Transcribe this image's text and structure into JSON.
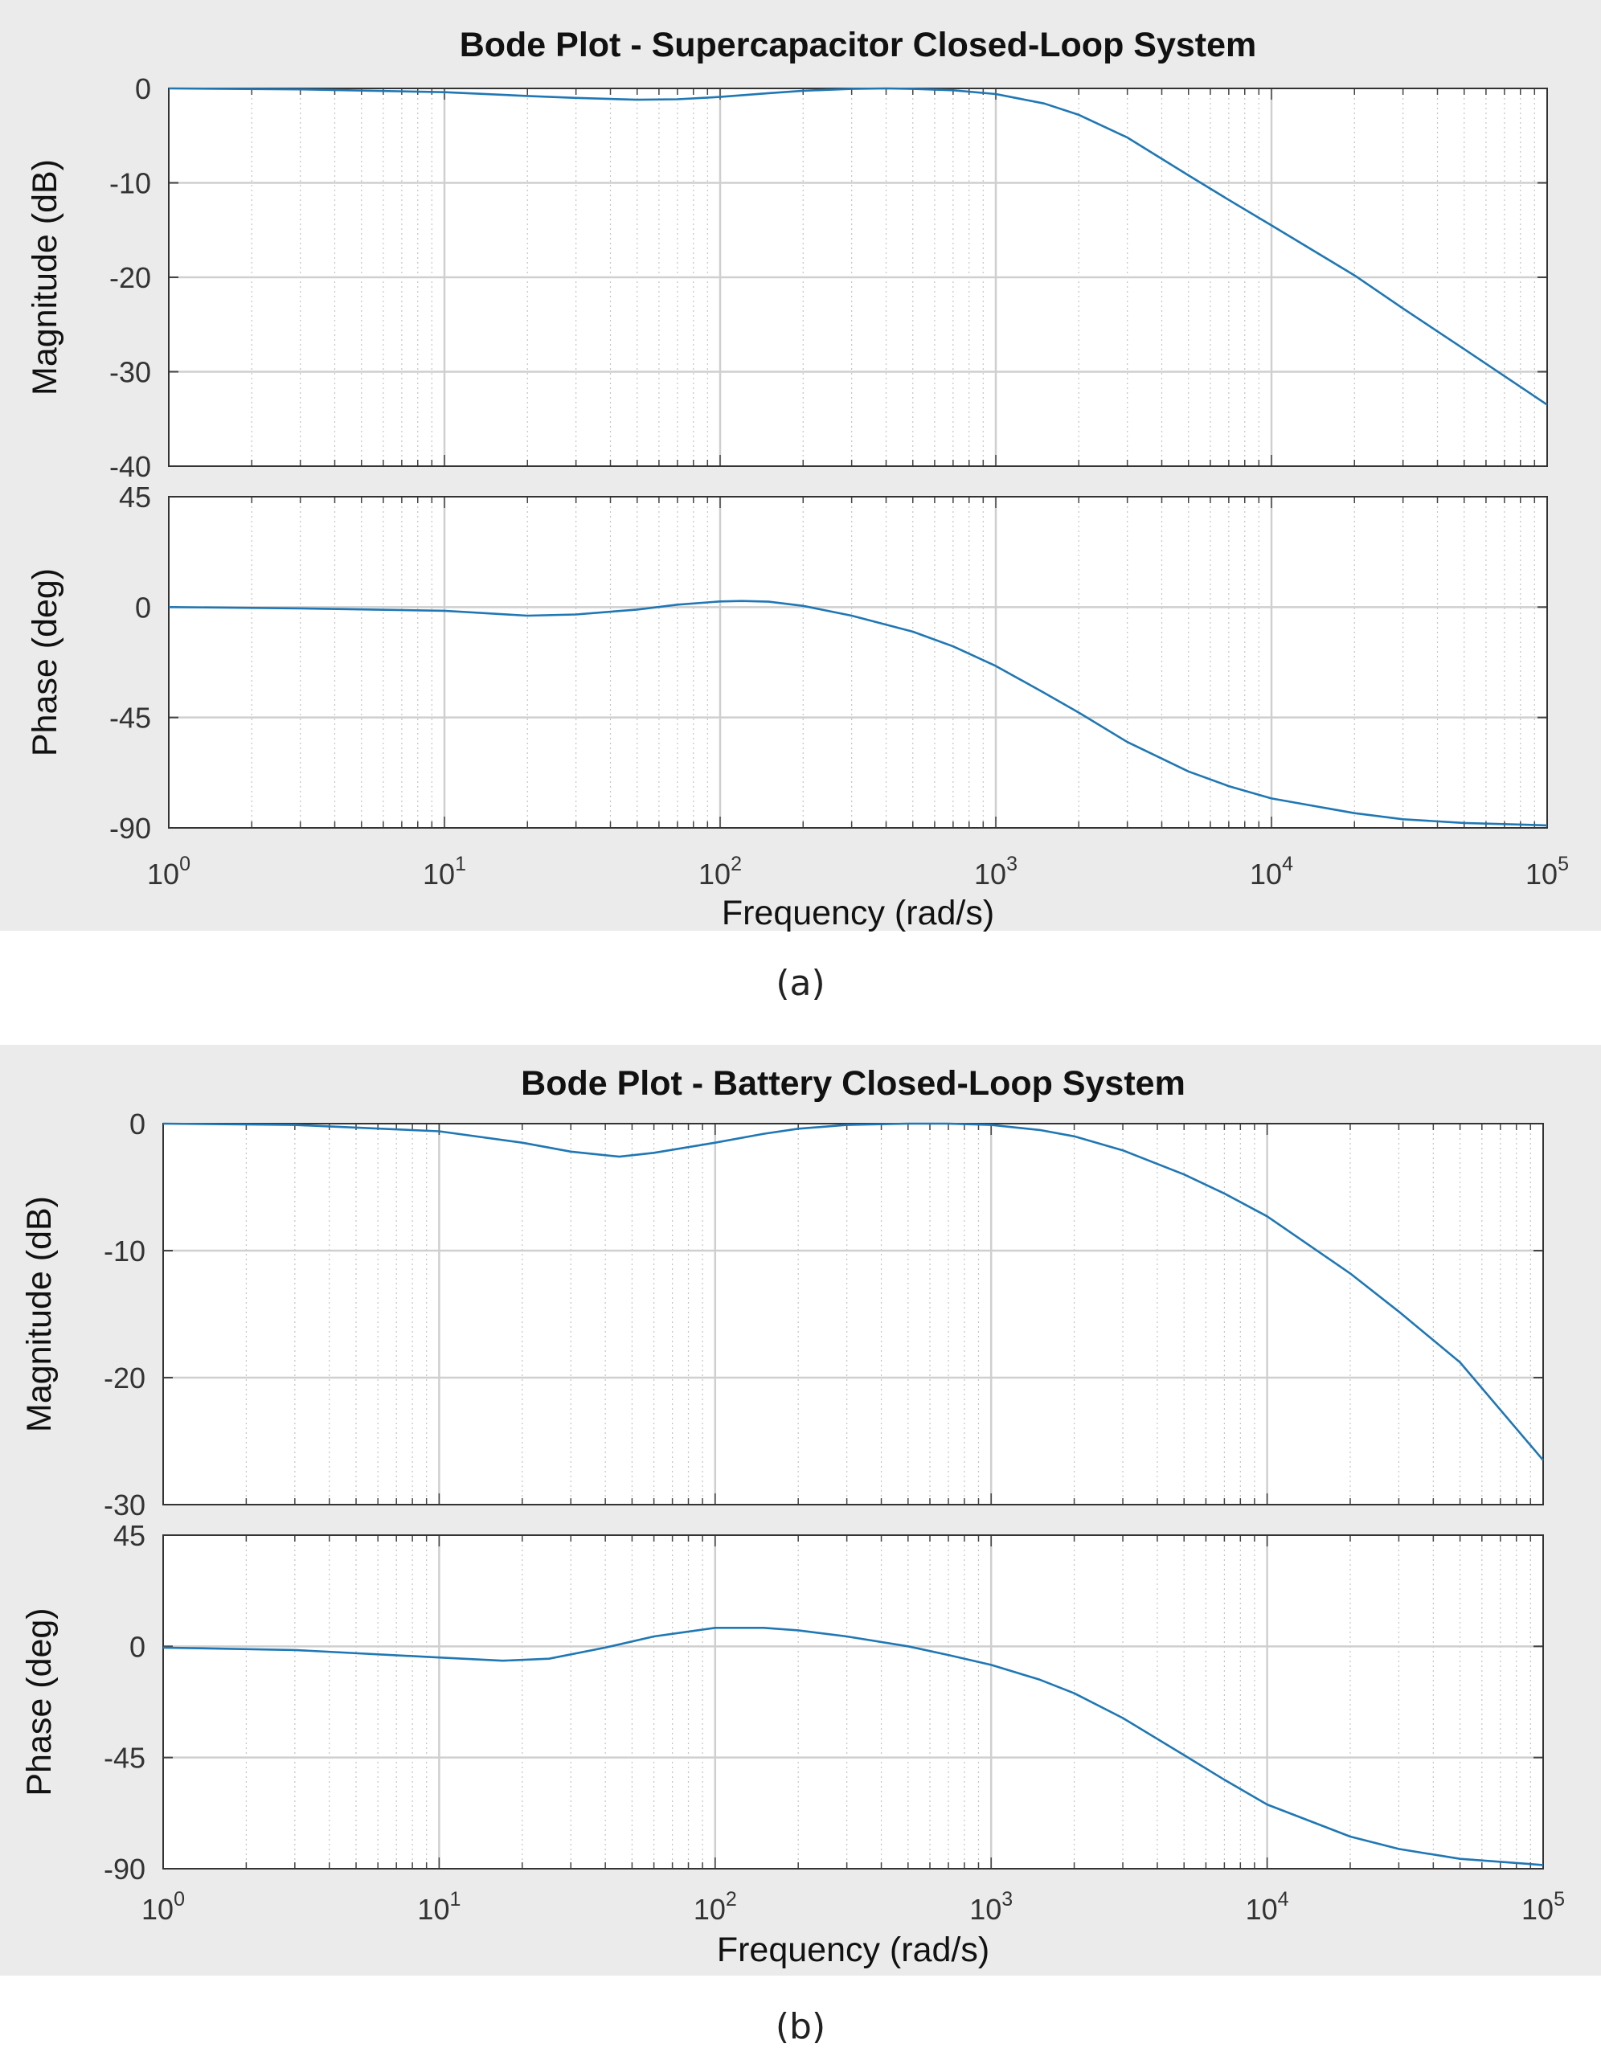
{
  "captions": {
    "a": "(a)",
    "b": "(b)"
  },
  "chart_data": [
    {
      "id": "a",
      "type": "line",
      "title": "Bode Plot - Supercapacitor Closed-Loop System",
      "xlabel": "Frequency  (rad/s)",
      "x_scale": "log",
      "x_range": [
        1,
        100000
      ],
      "x_tick_labels": [
        "10^0",
        "10^1",
        "10^2",
        "10^3",
        "10^4",
        "10^5"
      ],
      "color": "#1f77b4",
      "grid": true,
      "subplots": [
        {
          "name": "magnitude",
          "ylabel": "Magnitude (dB)",
          "ylim": [
            -40,
            0
          ],
          "yticks": [
            0,
            -10,
            -20,
            -30,
            -40
          ],
          "x": [
            1,
            3,
            10,
            20,
            30,
            50,
            70,
            100,
            150,
            200,
            300,
            400,
            500,
            700,
            1000,
            1500,
            2000,
            3000,
            5000,
            7000,
            10000,
            20000,
            30000,
            50000,
            100000
          ],
          "y": [
            0,
            -0.1,
            -0.4,
            -0.8,
            -1.0,
            -1.2,
            -1.15,
            -0.9,
            -0.5,
            -0.25,
            -0.05,
            0,
            -0.05,
            -0.2,
            -0.6,
            -1.6,
            -2.8,
            -5.2,
            -9.2,
            -11.8,
            -14.5,
            -19.8,
            -23.3,
            -27.6,
            -33.5
          ]
        },
        {
          "name": "phase",
          "ylabel": "Phase (deg)",
          "ylim": [
            -90,
            45
          ],
          "yticks": [
            45,
            0,
            -45,
            -90
          ],
          "x": [
            1,
            3,
            10,
            20,
            30,
            50,
            70,
            100,
            120,
            150,
            200,
            300,
            500,
            700,
            1000,
            1500,
            2000,
            3000,
            5000,
            7000,
            10000,
            20000,
            30000,
            50000,
            100000
          ],
          "y": [
            0,
            -0.5,
            -1.5,
            -3.5,
            -3.0,
            -1.0,
            1.0,
            2.3,
            2.5,
            2.2,
            0.5,
            -3.5,
            -10.0,
            -16.0,
            -24.0,
            -35.0,
            -43.0,
            -55.0,
            -67.0,
            -73.0,
            -78.0,
            -84.0,
            -86.5,
            -88.0,
            -89.0
          ]
        }
      ]
    },
    {
      "id": "b",
      "type": "line",
      "title": "Bode Plot - Battery Closed-Loop System",
      "xlabel": "Frequency  (rad/s)",
      "x_scale": "log",
      "x_range": [
        1,
        100000
      ],
      "x_tick_labels": [
        "10^0",
        "10^1",
        "10^2",
        "10^3",
        "10^4",
        "10^5"
      ],
      "color": "#1f77b4",
      "grid": true,
      "subplots": [
        {
          "name": "magnitude",
          "ylabel": "Magnitude (dB)",
          "ylim": [
            -30,
            0
          ],
          "yticks": [
            0,
            -10,
            -20,
            -30
          ],
          "x": [
            1,
            3,
            10,
            20,
            30,
            45,
            60,
            100,
            150,
            200,
            300,
            500,
            700,
            1000,
            1500,
            2000,
            3000,
            5000,
            7000,
            10000,
            20000,
            30000,
            50000,
            100000
          ],
          "y": [
            0,
            -0.1,
            -0.6,
            -1.5,
            -2.2,
            -2.6,
            -2.3,
            -1.5,
            -0.8,
            -0.4,
            -0.1,
            0,
            0,
            -0.1,
            -0.5,
            -1.0,
            -2.1,
            -4.0,
            -5.5,
            -7.3,
            -11.8,
            -14.8,
            -18.8,
            -26.5
          ]
        },
        {
          "name": "phase",
          "ylabel": "Phase (deg)",
          "ylim": [
            -90,
            45
          ],
          "yticks": [
            45,
            0,
            -45,
            -90
          ],
          "x": [
            1,
            3,
            10,
            17,
            25,
            40,
            60,
            100,
            150,
            200,
            300,
            500,
            700,
            1000,
            1500,
            2000,
            3000,
            5000,
            7000,
            10000,
            20000,
            30000,
            50000,
            100000
          ],
          "y": [
            -0.5,
            -1.5,
            -4.5,
            -5.8,
            -5.0,
            -0.5,
            4.0,
            7.5,
            7.5,
            6.5,
            4.0,
            0,
            -3.5,
            -7.5,
            -13.5,
            -19.0,
            -29.0,
            -44.0,
            -54.0,
            -64.0,
            -77.0,
            -82.0,
            -86.0,
            -88.5
          ]
        }
      ]
    }
  ]
}
